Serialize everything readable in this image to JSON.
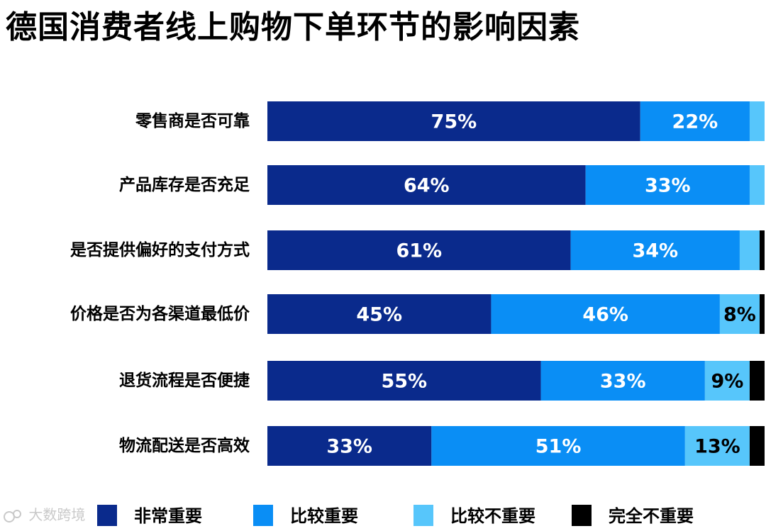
{
  "title": "德国消费者线上购物下单环节的影响因素",
  "watermark": "大数跨境",
  "colors": {
    "very_important": "#0a2a8c",
    "important": "#0a8ef5",
    "not_very_important": "#57c6fb",
    "not_important": "#000000"
  },
  "chart_data": {
    "type": "bar",
    "orientation": "horizontal",
    "stacked": true,
    "percent_stacked": true,
    "xlim": [
      0,
      100
    ],
    "grid": false,
    "legend_position": "bottom",
    "categories": [
      "零售商是否可靠",
      "产品库存是否充足",
      "是否提供偏好的支付方式",
      "价格是否为各渠道最低价",
      "退货流程是否便捷",
      "物流配送是否高效"
    ],
    "series": [
      {
        "name": "非常重要",
        "values": [
          75,
          64,
          61,
          45,
          55,
          33
        ],
        "labels": [
          "75%",
          "64%",
          "61%",
          "45%",
          "55%",
          "33%"
        ]
      },
      {
        "name": "比较重要",
        "values": [
          22,
          33,
          34,
          46,
          33,
          51
        ],
        "labels": [
          "22%",
          "33%",
          "34%",
          "46%",
          "33%",
          "51%"
        ]
      },
      {
        "name": "比较不重要",
        "values": [
          3,
          3,
          4,
          8,
          9,
          13
        ],
        "labels": [
          "",
          "",
          "",
          "8%",
          "9%",
          "13%"
        ]
      },
      {
        "name": "完全不重要",
        "values": [
          0,
          0,
          1,
          1,
          3,
          3
        ],
        "labels": [
          "",
          "",
          "",
          "",
          "",
          ""
        ]
      }
    ]
  }
}
